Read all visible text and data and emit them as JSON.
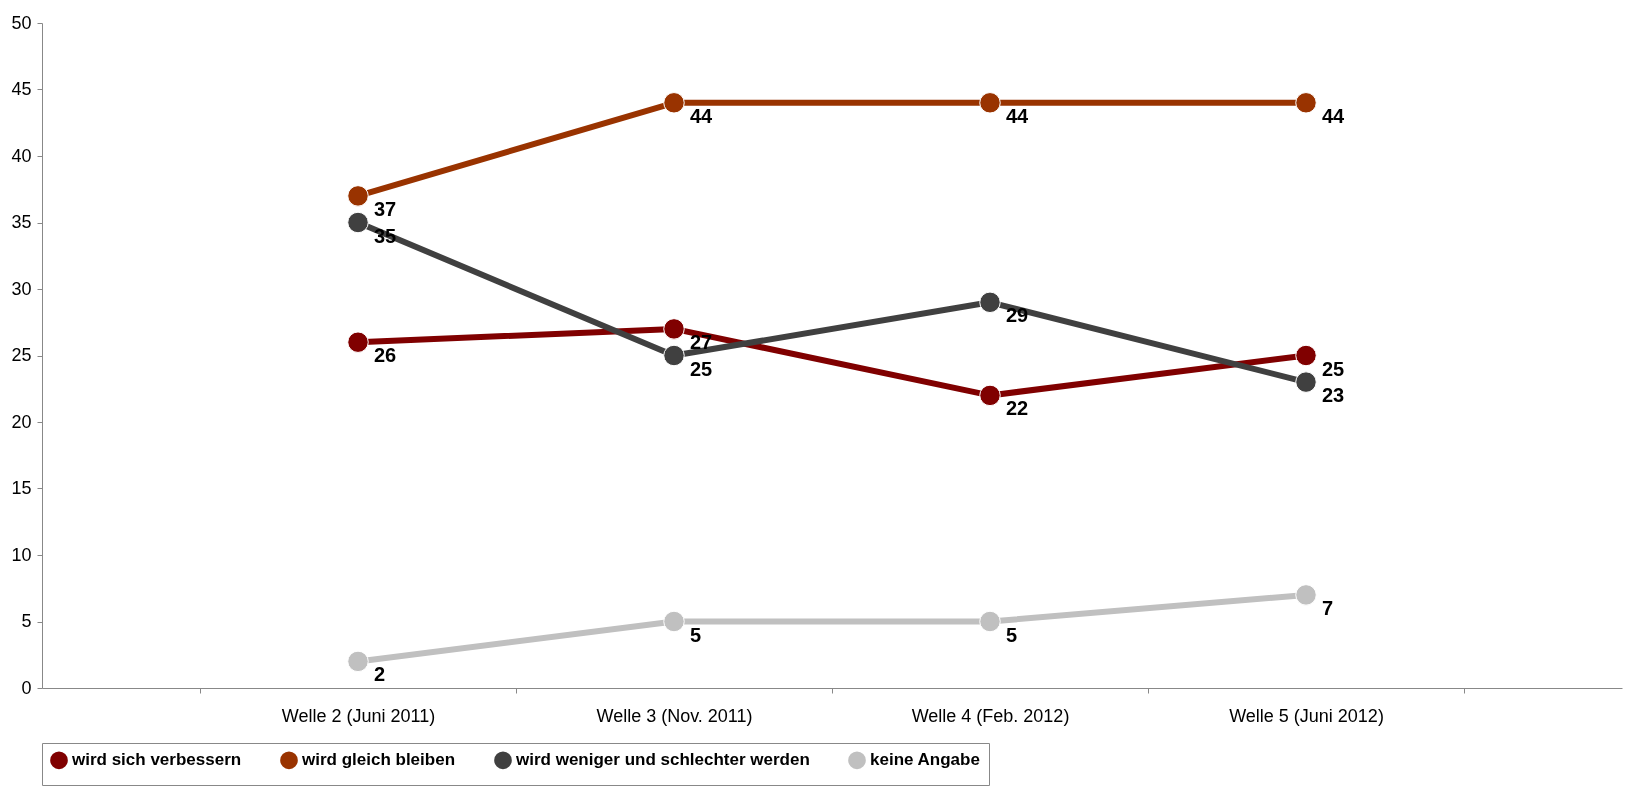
{
  "chart_data": {
    "type": "line",
    "categories": [
      "Welle 2 (Juni 2011)",
      "Welle 3 (Nov. 2011)",
      "Welle 4 (Feb. 2012)",
      "Welle 5 (Juni 2012)"
    ],
    "series": [
      {
        "name": "wird sich verbessern",
        "color": "#800000",
        "values": [
          26,
          27,
          22,
          25
        ]
      },
      {
        "name": "wird gleich bleiben",
        "color": "#993300",
        "values": [
          37,
          44,
          44,
          44
        ]
      },
      {
        "name": "wird weniger und schlechter werden",
        "color": "#404040",
        "values": [
          35,
          25,
          29,
          23
        ]
      },
      {
        "name": "keine Angabe",
        "color": "#c0c0c0",
        "values": [
          2,
          5,
          5,
          7
        ]
      }
    ],
    "ylim": [
      0,
      50
    ],
    "yticks": [
      0,
      5,
      10,
      15,
      20,
      25,
      30,
      35,
      40,
      45,
      50
    ],
    "grid": false,
    "legend": "bottom",
    "marker": "circle",
    "line_style": "solid",
    "data_labels": true
  }
}
